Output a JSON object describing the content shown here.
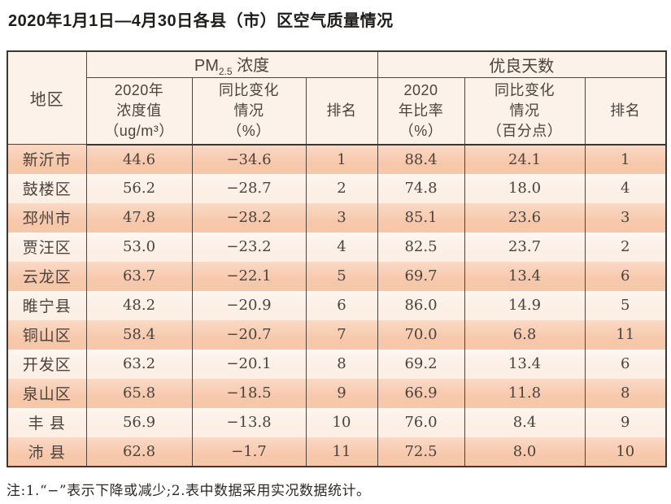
{
  "title": "2020年1月1日—4月30日各县（市）区空气质量情况",
  "table": {
    "header": {
      "region": "地区",
      "pm25_group": {
        "prefix": "PM",
        "subscript": "2.5",
        "suffix": " 浓度"
      },
      "good_days_group": "优良天数",
      "sub_headers": {
        "pm_2020": "2020年\n浓度值\n（ug/m³）",
        "pm_change": "同比变化\n情况\n（%）",
        "pm_rank": "排名",
        "good_rate": "2020\n年比率\n（%）",
        "good_change": "同比变化\n情况\n（百分点）",
        "good_rank": "排名"
      }
    },
    "column_keys": [
      "region",
      "pm_2020",
      "pm_change",
      "pm_rank",
      "good_rate",
      "good_change",
      "good_rank"
    ],
    "rows": [
      {
        "region": "新沂市",
        "pm_2020": "44.6",
        "pm_change": "−34.6",
        "pm_rank": "1",
        "good_rate": "88.4",
        "good_change": "24.1",
        "good_rank": "1"
      },
      {
        "region": "鼓楼区",
        "pm_2020": "56.2",
        "pm_change": "−28.7",
        "pm_rank": "2",
        "good_rate": "74.8",
        "good_change": "18.0",
        "good_rank": "4"
      },
      {
        "region": "邳州市",
        "pm_2020": "47.8",
        "pm_change": "−28.2",
        "pm_rank": "3",
        "good_rate": "85.1",
        "good_change": "23.6",
        "good_rank": "3"
      },
      {
        "region": "贾汪区",
        "pm_2020": "53.0",
        "pm_change": "−23.2",
        "pm_rank": "4",
        "good_rate": "82.5",
        "good_change": "23.7",
        "good_rank": "2"
      },
      {
        "region": "云龙区",
        "pm_2020": "63.7",
        "pm_change": "−22.1",
        "pm_rank": "5",
        "good_rate": "69.7",
        "good_change": "13.4",
        "good_rank": "6"
      },
      {
        "region": "睢宁县",
        "pm_2020": "48.2",
        "pm_change": "−20.9",
        "pm_rank": "6",
        "good_rate": "86.0",
        "good_change": "14.9",
        "good_rank": "5"
      },
      {
        "region": "铜山区",
        "pm_2020": "58.4",
        "pm_change": "−20.7",
        "pm_rank": "7",
        "good_rate": "70.0",
        "good_change": "6.8",
        "good_rank": "11"
      },
      {
        "region": "开发区",
        "pm_2020": "63.2",
        "pm_change": "−20.1",
        "pm_rank": "8",
        "good_rate": "69.2",
        "good_change": "13.4",
        "good_rank": "6"
      },
      {
        "region": "泉山区",
        "pm_2020": "65.8",
        "pm_change": "−18.5",
        "pm_rank": "9",
        "good_rate": "66.9",
        "good_change": "11.8",
        "good_rank": "8"
      },
      {
        "region": "丰 县",
        "pm_2020": "56.9",
        "pm_change": "−13.8",
        "pm_rank": "10",
        "good_rate": "76.0",
        "good_change": "8.4",
        "good_rank": "9"
      },
      {
        "region": "沛 县",
        "pm_2020": "62.8",
        "pm_change": "−1.7",
        "pm_rank": "11",
        "good_rate": "72.5",
        "good_change": "8.0",
        "good_rank": "10"
      }
    ]
  },
  "footnote": "注:1.“−”表示下降或减少;2.表中数据采用实况数据统计。",
  "colors": {
    "stripe-dark": "#f7c7aa",
    "stripe-light": "#fcefe5",
    "header-bg": "#fcf2e9",
    "border-dark": "#3b3733",
    "border-mid": "#4e443c",
    "cell-text": "#4c433d",
    "title-text": "#1f1d1b",
    "note-text": "#2c2825"
  }
}
